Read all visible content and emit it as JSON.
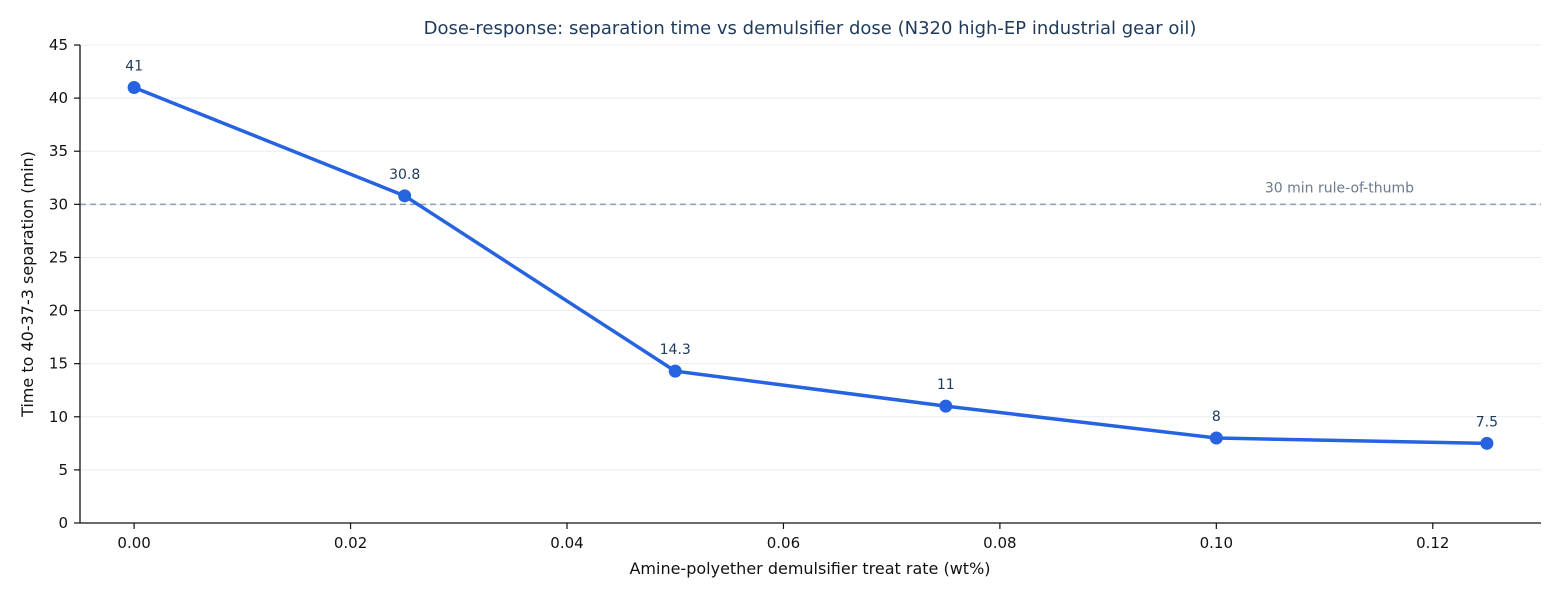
{
  "chart_data": {
    "type": "line",
    "title": "Dose-response: separation time vs demulsifier dose (N320 high-EP industrial gear oil)",
    "xlabel": "Amine-polyether demulsifier treat rate (wt%)",
    "ylabel": "Time to 40-37-3 separation (min)",
    "x": [
      0.0,
      0.025,
      0.05,
      0.075,
      0.1,
      0.125
    ],
    "series": [
      {
        "values": [
          41,
          30.8,
          14.3,
          11,
          8,
          7.5
        ],
        "color": "#2563e0"
      }
    ],
    "data_labels": [
      "41",
      "30.8",
      "14.3",
      "11",
      "8",
      "7.5"
    ],
    "xlim": [
      -0.005,
      0.13
    ],
    "ylim": [
      0,
      45
    ],
    "x_ticks": [
      0.0,
      0.02,
      0.04,
      0.06,
      0.08,
      0.1,
      0.12
    ],
    "x_tick_labels": [
      "0.00",
      "0.02",
      "0.04",
      "0.06",
      "0.08",
      "0.10",
      "0.12"
    ],
    "y_ticks": [
      0,
      5,
      10,
      15,
      20,
      25,
      30,
      35,
      40,
      45
    ],
    "y_tick_labels": [
      "0",
      "5",
      "10",
      "15",
      "20",
      "25",
      "30",
      "35",
      "40",
      "45"
    ],
    "grid": "horizontal",
    "reference_line": {
      "y": 30,
      "label": "30 min rule-of-thumb",
      "color": "#8aa0b8"
    }
  }
}
